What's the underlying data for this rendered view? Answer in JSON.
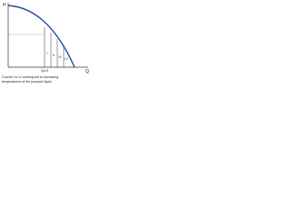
{
  "axes": {
    "y_label": "H",
    "x_label": "Q"
  },
  "labels": {
    "flow_mark": "Qs,R",
    "curves": [
      "I",
      "II",
      "III",
      "IV"
    ]
  },
  "caption": [
    "Curves I to IV correspond to increasing",
    "temperatures of the pumped liquid"
  ]
}
